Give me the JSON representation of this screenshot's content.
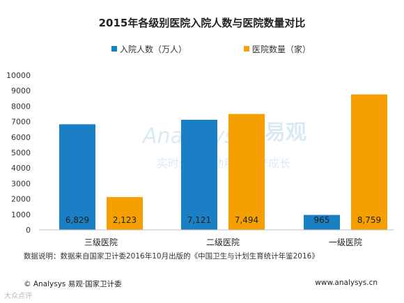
{
  "chart_data": {
    "type": "bar",
    "title": "2015年各级别医院入院人数与医院数量对比",
    "categories": [
      "三级医院",
      "二级医院",
      "一级医院"
    ],
    "series": [
      {
        "name": "入院人数（万人）",
        "values": [
          6829,
          7121,
          965
        ],
        "color": "#1a7fc4",
        "labels": [
          "6,829",
          "7,121",
          "965"
        ]
      },
      {
        "name": "医院数量（家）",
        "values": [
          2123,
          7494,
          8759
        ],
        "color": "#f5a000",
        "labels": [
          "2,123",
          "7,494",
          "8,759"
        ]
      }
    ],
    "yticks": [
      "0",
      "1000",
      "2000",
      "3000",
      "4000",
      "5000",
      "6000",
      "7000",
      "8000",
      "9000",
      "10000"
    ],
    "ylim": [
      0,
      10000
    ],
    "legend_position": "top",
    "grid": false
  },
  "footer": {
    "note": "数据说明：数据来自国家卫计委2016年10月出版的《中国卫生与计划生育统计年鉴2016》",
    "source": "© Analysys 易观·国家卫计委",
    "website": "www.analysys.cn"
  },
  "watermark": {
    "logo_text": "Analysys",
    "logo_cn": "易观",
    "tagline": "实时分析驱动用户资产成长",
    "corner": "大众点评"
  }
}
